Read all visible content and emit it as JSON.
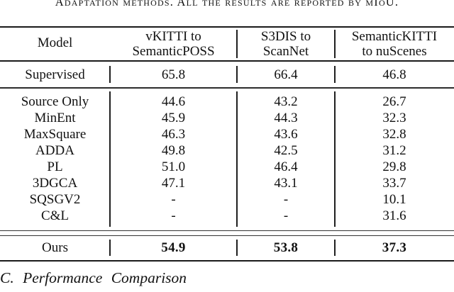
{
  "caption": "Adaptation methods. All the results are reported by mIoU.",
  "table": {
    "header": {
      "model": "Model",
      "col2_line1": "vKITTI to",
      "col2_line2": "SemanticPOSS",
      "col3_line1": "S3DIS to",
      "col3_line2": "ScanNet",
      "col4_line1": "SemanticKITTI",
      "col4_line2": "to nuScenes"
    },
    "supervised_row": {
      "model": "Supervised",
      "v1": "65.8",
      "v2": "66.4",
      "v3": "46.8"
    },
    "method_rows": [
      {
        "model": "Source Only",
        "v1": "44.6",
        "v2": "43.2",
        "v3": "26.7"
      },
      {
        "model": "MinEnt",
        "v1": "45.9",
        "v2": "44.3",
        "v3": "32.3"
      },
      {
        "model": "MaxSquare",
        "v1": "46.3",
        "v2": "43.6",
        "v3": "32.8"
      },
      {
        "model": "ADDA",
        "v1": "49.8",
        "v2": "42.5",
        "v3": "31.2"
      },
      {
        "model": "PL",
        "v1": "51.0",
        "v2": "46.4",
        "v3": "29.8"
      },
      {
        "model": "3DGCA",
        "v1": "47.1",
        "v2": "43.1",
        "v3": "33.7"
      },
      {
        "model": "SQSGV2",
        "v1": "-",
        "v2": "-",
        "v3": "10.1"
      },
      {
        "model": "C&L",
        "v1": "-",
        "v2": "-",
        "v3": "31.6"
      }
    ],
    "ours_row": {
      "model": "Ours",
      "v1": "54.9",
      "v2": "53.8",
      "v3": "37.3"
    }
  },
  "section_heading": "C. Performance Comparison",
  "colors": {
    "text": "#111111",
    "rule_dark": "#1a1a1a",
    "rule_thin": "#333333",
    "background": "#ffffff"
  }
}
